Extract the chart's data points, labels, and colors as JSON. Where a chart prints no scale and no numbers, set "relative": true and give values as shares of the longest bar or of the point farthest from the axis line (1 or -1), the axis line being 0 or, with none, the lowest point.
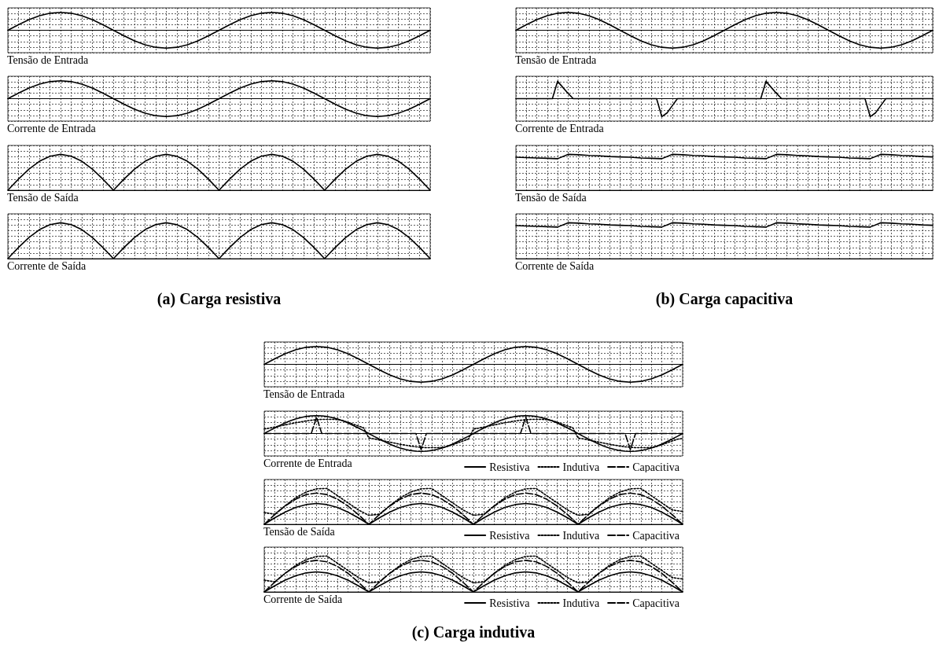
{
  "chart_data": [
    {
      "type": "line",
      "relative": true,
      "grid": true,
      "tick_labels": false,
      "xlabel": "Tensão de Entrada",
      "categories": [
        null,
        null,
        null,
        null,
        null,
        null,
        null,
        null,
        null,
        null,
        null,
        null,
        null,
        null,
        null,
        null,
        null,
        null,
        null,
        null,
        null,
        null,
        null,
        null,
        null,
        null,
        null,
        null,
        null,
        null,
        null,
        null,
        null,
        null,
        null,
        null,
        null,
        null,
        null,
        null,
        null
      ],
      "series": [
        {
          "color": "#000000",
          "values": [
            0,
            0.31,
            0.59,
            0.81,
            0.95,
            1,
            0.95,
            0.81,
            0.59,
            0.31,
            0,
            -0.31,
            -0.59,
            -0.81,
            -0.95,
            -1,
            -0.95,
            -0.81,
            -0.59,
            -0.31,
            0,
            0.31,
            0.59,
            0.81,
            0.95,
            1,
            0.95,
            0.81,
            0.59,
            0.31,
            0,
            -0.31,
            -0.59,
            -0.81,
            -0.95,
            -1,
            -0.95,
            -0.81,
            -0.59,
            -0.31,
            0
          ]
        }
      ]
    },
    {
      "type": "line",
      "relative": true,
      "grid": true,
      "tick_labels": false,
      "xlabel": "Corrente de Entrada",
      "categories": [
        null,
        null,
        null,
        null,
        null,
        null,
        null,
        null,
        null,
        null,
        null,
        null,
        null,
        null,
        null,
        null,
        null,
        null,
        null,
        null,
        null,
        null,
        null,
        null,
        null,
        null,
        null,
        null,
        null,
        null,
        null,
        null,
        null,
        null,
        null,
        null,
        null,
        null,
        null,
        null,
        null
      ],
      "series": [
        {
          "color": "#000000",
          "values": [
            0,
            0.31,
            0.59,
            0.81,
            0.95,
            1,
            0.95,
            0.81,
            0.59,
            0.31,
            0,
            -0.31,
            -0.59,
            -0.81,
            -0.95,
            -1,
            -0.95,
            -0.81,
            -0.59,
            -0.31,
            0,
            0.31,
            0.59,
            0.81,
            0.95,
            1,
            0.95,
            0.81,
            0.59,
            0.31,
            0,
            -0.31,
            -0.59,
            -0.81,
            -0.95,
            -1,
            -0.95,
            -0.81,
            -0.59,
            -0.31,
            0
          ]
        }
      ]
    },
    {
      "type": "line",
      "relative": true,
      "grid": true,
      "tick_labels": false,
      "xlabel": "Tensão de Saída",
      "categories": [
        null,
        null,
        null,
        null,
        null,
        null,
        null,
        null,
        null,
        null,
        null,
        null,
        null,
        null,
        null,
        null,
        null,
        null,
        null,
        null,
        null,
        null,
        null,
        null,
        null,
        null,
        null,
        null,
        null,
        null,
        null,
        null,
        null,
        null,
        null,
        null,
        null,
        null,
        null,
        null,
        null
      ],
      "series": [
        {
          "color": "#000000",
          "values": [
            0,
            0.31,
            0.59,
            0.81,
            0.95,
            1,
            0.95,
            0.81,
            0.59,
            0.31,
            0,
            0.31,
            0.59,
            0.81,
            0.95,
            1,
            0.95,
            0.81,
            0.59,
            0.31,
            0,
            0.31,
            0.59,
            0.81,
            0.95,
            1,
            0.95,
            0.81,
            0.59,
            0.31,
            0,
            0.31,
            0.59,
            0.81,
            0.95,
            1,
            0.95,
            0.81,
            0.59,
            0.31,
            0
          ]
        }
      ]
    },
    {
      "type": "line",
      "relative": true,
      "grid": true,
      "tick_labels": false,
      "xlabel": "Corrente de Saída",
      "annotations": [
        "(a) Carga resistiva"
      ],
      "categories": [
        null,
        null,
        null,
        null,
        null,
        null,
        null,
        null,
        null,
        null,
        null,
        null,
        null,
        null,
        null,
        null,
        null,
        null,
        null,
        null,
        null,
        null,
        null,
        null,
        null,
        null,
        null,
        null,
        null,
        null,
        null,
        null,
        null,
        null,
        null,
        null,
        null,
        null,
        null,
        null,
        null
      ],
      "series": [
        {
          "color": "#000000",
          "values": [
            0,
            0.31,
            0.59,
            0.81,
            0.95,
            1,
            0.95,
            0.81,
            0.59,
            0.31,
            0,
            0.31,
            0.59,
            0.81,
            0.95,
            1,
            0.95,
            0.81,
            0.59,
            0.31,
            0,
            0.31,
            0.59,
            0.81,
            0.95,
            1,
            0.95,
            0.81,
            0.59,
            0.31,
            0,
            0.31,
            0.59,
            0.81,
            0.95,
            1,
            0.95,
            0.81,
            0.59,
            0.31,
            0
          ]
        }
      ]
    },
    {
      "type": "line",
      "relative": true,
      "grid": true,
      "tick_labels": false,
      "xlabel": "Tensão de Entrada",
      "categories": [
        null,
        null,
        null,
        null,
        null,
        null,
        null,
        null,
        null,
        null,
        null,
        null,
        null,
        null,
        null,
        null,
        null,
        null,
        null,
        null,
        null,
        null,
        null,
        null,
        null,
        null,
        null,
        null,
        null,
        null,
        null,
        null,
        null,
        null,
        null,
        null,
        null,
        null,
        null,
        null,
        null
      ],
      "series": [
        {
          "color": "#000000",
          "values": [
            0,
            0.31,
            0.59,
            0.81,
            0.95,
            1,
            0.95,
            0.81,
            0.59,
            0.31,
            0,
            -0.31,
            -0.59,
            -0.81,
            -0.95,
            -1,
            -0.95,
            -0.81,
            -0.59,
            -0.31,
            0,
            0.31,
            0.59,
            0.81,
            0.95,
            1,
            0.95,
            0.81,
            0.59,
            0.31,
            0,
            -0.31,
            -0.59,
            -0.81,
            -0.95,
            -1,
            -0.95,
            -0.81,
            -0.59,
            -0.31,
            0
          ]
        }
      ]
    },
    {
      "type": "line",
      "relative": true,
      "grid": true,
      "tick_labels": false,
      "xlabel": "Corrente de Entrada",
      "categories": [
        null,
        null,
        null,
        null,
        null,
        null,
        null,
        null,
        null,
        null,
        null,
        null,
        null,
        null,
        null,
        null,
        null,
        null,
        null,
        null,
        null,
        null,
        null,
        null,
        null,
        null,
        null,
        null,
        null,
        null,
        null,
        null,
        null,
        null,
        null,
        null,
        null,
        null,
        null,
        null,
        null,
        null,
        null,
        null,
        null,
        null,
        null,
        null,
        null,
        null,
        null,
        null,
        null,
        null,
        null,
        null,
        null,
        null,
        null,
        null,
        null,
        null,
        null,
        null,
        null,
        null,
        null,
        null,
        null,
        null,
        null,
        null,
        null,
        null,
        null,
        null,
        null,
        null,
        null,
        null,
        null
      ],
      "series": [
        {
          "color": "#000000",
          "values": [
            0,
            0,
            0,
            0,
            0,
            0,
            0,
            0,
            0.97,
            0.63,
            0.3,
            0,
            0,
            0,
            0,
            0,
            0,
            0,
            0,
            0,
            0,
            0,
            0,
            0,
            0,
            0,
            0,
            0,
            -1,
            -0.8,
            -0.4,
            0,
            0,
            0,
            0,
            0,
            0,
            0,
            0,
            0,
            0,
            0,
            0,
            0,
            0,
            0,
            0,
            0,
            0.97,
            0.63,
            0.3,
            0,
            0,
            0,
            0,
            0,
            0,
            0,
            0,
            0,
            0,
            0,
            0,
            0,
            0,
            0,
            0,
            0,
            -1,
            -0.8,
            -0.4,
            0,
            0,
            0,
            0,
            0,
            0,
            0,
            0,
            0,
            0
          ]
        }
      ]
    },
    {
      "type": "line",
      "relative": true,
      "grid": true,
      "tick_labels": false,
      "xlabel": "Tensão de Saída",
      "categories": [
        null,
        null,
        null,
        null,
        null,
        null,
        null,
        null,
        null,
        null,
        null,
        null,
        null,
        null,
        null,
        null,
        null,
        null,
        null,
        null,
        null,
        null,
        null,
        null,
        null,
        null,
        null,
        null,
        null,
        null,
        null,
        null,
        null,
        null,
        null,
        null,
        null,
        null,
        null,
        null,
        null
      ],
      "series": [
        {
          "color": "#000000",
          "values": [
            0.92,
            0.91,
            0.9,
            0.89,
            0.88,
            1,
            0.99,
            0.97,
            0.96,
            0.94,
            0.93,
            0.92,
            0.9,
            0.89,
            0.88,
            1,
            0.99,
            0.97,
            0.96,
            0.94,
            0.93,
            0.92,
            0.9,
            0.89,
            0.88,
            1,
            0.99,
            0.97,
            0.96,
            0.94,
            0.93,
            0.92,
            0.9,
            0.89,
            0.88,
            1,
            0.99,
            0.97,
            0.96,
            0.94,
            0.93
          ]
        }
      ]
    },
    {
      "type": "line",
      "relative": true,
      "grid": true,
      "tick_labels": false,
      "xlabel": "Corrente de Saída",
      "annotations": [
        "(b) Carga capacitiva"
      ],
      "categories": [
        null,
        null,
        null,
        null,
        null,
        null,
        null,
        null,
        null,
        null,
        null,
        null,
        null,
        null,
        null,
        null,
        null,
        null,
        null,
        null,
        null,
        null,
        null,
        null,
        null,
        null,
        null,
        null,
        null,
        null,
        null,
        null,
        null,
        null,
        null,
        null,
        null,
        null,
        null,
        null,
        null
      ],
      "series": [
        {
          "color": "#000000",
          "values": [
            0.92,
            0.91,
            0.9,
            0.89,
            0.88,
            1,
            0.99,
            0.97,
            0.96,
            0.94,
            0.93,
            0.92,
            0.9,
            0.89,
            0.88,
            1,
            0.99,
            0.97,
            0.96,
            0.94,
            0.93,
            0.92,
            0.9,
            0.89,
            0.88,
            1,
            0.99,
            0.97,
            0.96,
            0.94,
            0.93,
            0.92,
            0.9,
            0.89,
            0.88,
            1,
            0.99,
            0.97,
            0.96,
            0.94,
            0.93
          ]
        }
      ]
    },
    {
      "type": "line",
      "relative": true,
      "grid": true,
      "tick_labels": false,
      "xlabel": "Tensão de Entrada",
      "categories": [
        null,
        null,
        null,
        null,
        null,
        null,
        null,
        null,
        null,
        null,
        null,
        null,
        null,
        null,
        null,
        null,
        null,
        null,
        null,
        null,
        null,
        null,
        null,
        null,
        null,
        null,
        null,
        null,
        null,
        null,
        null,
        null,
        null,
        null,
        null,
        null,
        null,
        null,
        null,
        null,
        null
      ],
      "series": [
        {
          "color": "#000000",
          "values": [
            0,
            0.31,
            0.59,
            0.81,
            0.95,
            1,
            0.95,
            0.81,
            0.59,
            0.31,
            0,
            -0.31,
            -0.59,
            -0.81,
            -0.95,
            -1,
            -0.95,
            -0.81,
            -0.59,
            -0.31,
            0,
            0.31,
            0.59,
            0.81,
            0.95,
            1,
            0.95,
            0.81,
            0.59,
            0.31,
            0,
            -0.31,
            -0.59,
            -0.81,
            -0.95,
            -1,
            -0.95,
            -0.81,
            -0.59,
            -0.31,
            0
          ]
        }
      ]
    },
    {
      "type": "line",
      "relative": true,
      "grid": true,
      "tick_labels": false,
      "legend": "bottom right",
      "xlabel": "Corrente de Entrada",
      "categories": [
        null,
        null,
        null,
        null,
        null,
        null,
        null,
        null,
        null,
        null,
        null,
        null,
        null,
        null,
        null,
        null,
        null,
        null,
        null,
        null,
        null,
        null,
        null,
        null,
        null,
        null,
        null,
        null,
        null,
        null,
        null,
        null,
        null,
        null,
        null,
        null,
        null,
        null,
        null,
        null,
        null,
        null,
        null,
        null,
        null,
        null,
        null,
        null,
        null,
        null,
        null,
        null,
        null,
        null,
        null,
        null,
        null,
        null,
        null,
        null,
        null,
        null,
        null,
        null,
        null,
        null,
        null,
        null,
        null,
        null,
        null,
        null,
        null,
        null,
        null,
        null,
        null,
        null,
        null,
        null,
        null
      ],
      "series": [
        {
          "name": "Resistiva",
          "color": "#000000",
          "line_style": "solid",
          "values": [
            0,
            0.16,
            0.31,
            0.45,
            0.59,
            0.71,
            0.81,
            0.89,
            0.95,
            0.99,
            1,
            0.99,
            0.95,
            0.89,
            0.81,
            0.71,
            0.59,
            0.45,
            0.31,
            0.16,
            0,
            -0.16,
            -0.31,
            -0.45,
            -0.59,
            -0.71,
            -0.81,
            -0.89,
            -0.95,
            -0.99,
            -1,
            -0.99,
            -0.95,
            -0.89,
            -0.81,
            -0.71,
            -0.59,
            -0.45,
            -0.31,
            -0.16,
            0,
            0.16,
            0.31,
            0.45,
            0.59,
            0.71,
            0.81,
            0.89,
            0.95,
            0.99,
            1,
            0.99,
            0.95,
            0.89,
            0.81,
            0.71,
            0.59,
            0.45,
            0.31,
            0.16,
            0,
            -0.16,
            -0.31,
            -0.45,
            -0.59,
            -0.71,
            -0.81,
            -0.89,
            -0.95,
            -0.99,
            -1,
            -0.99,
            -0.95,
            -0.89,
            -0.81,
            -0.71,
            -0.59,
            -0.45,
            -0.31,
            -0.16,
            0
          ]
        },
        {
          "name": "Indutiva",
          "color": "#000000",
          "line_style": "dotted",
          "values": [
            0.25,
            0.3,
            0.36,
            0.42,
            0.48,
            0.54,
            0.6,
            0.65,
            0.7,
            0.74,
            0.77,
            0.79,
            0.79,
            0.79,
            0.78,
            0.72,
            0.63,
            0.52,
            0.42,
            0.32,
            -0.25,
            -0.3,
            -0.36,
            -0.42,
            -0.48,
            -0.54,
            -0.6,
            -0.65,
            -0.7,
            -0.74,
            -0.77,
            -0.79,
            -0.79,
            -0.79,
            -0.78,
            -0.72,
            -0.63,
            -0.52,
            -0.42,
            -0.32,
            0.25,
            0.3,
            0.36,
            0.42,
            0.48,
            0.54,
            0.6,
            0.65,
            0.7,
            0.74,
            0.77,
            0.79,
            0.79,
            0.79,
            0.78,
            0.72,
            0.63,
            0.52,
            0.42,
            0.32,
            -0.25,
            -0.3,
            -0.36,
            -0.42,
            -0.48,
            -0.54,
            -0.6,
            -0.65,
            -0.7,
            -0.74,
            -0.77,
            -0.79,
            -0.79,
            -0.79,
            -0.78,
            -0.72,
            -0.63,
            -0.52,
            -0.42,
            -0.32,
            -0.28
          ]
        },
        {
          "name": "Capacitiva",
          "color": "#000000",
          "line_style": "dashed",
          "values": [
            0,
            0,
            0,
            0,
            0,
            0,
            0,
            0,
            0,
            0,
            0.92,
            0,
            0,
            0,
            0,
            0,
            0,
            0,
            0,
            0,
            0,
            0,
            0,
            0,
            0,
            0,
            0,
            0,
            0,
            0,
            -0.9,
            0,
            0,
            0,
            0,
            0,
            0,
            0,
            0,
            0,
            0,
            0,
            0,
            0,
            0,
            0,
            0,
            0,
            0,
            0,
            0.92,
            0,
            0,
            0,
            0,
            0,
            0,
            0,
            0,
            0,
            0,
            0,
            0,
            0,
            0,
            0,
            0,
            0,
            0,
            0,
            -0.9,
            0,
            0,
            0,
            0,
            0,
            0,
            0,
            0,
            0,
            0
          ]
        }
      ]
    },
    {
      "type": "line",
      "relative": true,
      "grid": true,
      "tick_labels": false,
      "legend": "bottom right",
      "xlabel": "Tensão de Saída",
      "categories": [
        null,
        null,
        null,
        null,
        null,
        null,
        null,
        null,
        null,
        null,
        null,
        null,
        null,
        null,
        null,
        null,
        null,
        null,
        null,
        null,
        null,
        null,
        null,
        null,
        null,
        null,
        null,
        null,
        null,
        null,
        null,
        null,
        null,
        null,
        null,
        null,
        null,
        null,
        null,
        null,
        null
      ],
      "series": [
        {
          "name": "Resistiva",
          "color": "#000000",
          "line_style": "solid",
          "values": [
            0,
            0.18,
            0.34,
            0.47,
            0.55,
            0.58,
            0.55,
            0.47,
            0.34,
            0.18,
            0,
            0.18,
            0.34,
            0.47,
            0.55,
            0.58,
            0.55,
            0.47,
            0.34,
            0.18,
            0,
            0.18,
            0.34,
            0.47,
            0.55,
            0.58,
            0.55,
            0.47,
            0.34,
            0.18,
            0,
            0.18,
            0.34,
            0.47,
            0.55,
            0.58,
            0.55,
            0.47,
            0.34,
            0.18,
            0
          ]
        },
        {
          "name": "Indutiva",
          "color": "#000000",
          "line_style": "dotted",
          "values": [
            0.33,
            0.28,
            0.52,
            0.74,
            0.9,
            0.99,
            1,
            0.8,
            0.6,
            0.4,
            0.25,
            0.28,
            0.52,
            0.74,
            0.9,
            0.99,
            1,
            0.8,
            0.6,
            0.4,
            0.25,
            0.28,
            0.52,
            0.74,
            0.9,
            0.99,
            1,
            0.8,
            0.6,
            0.4,
            0.25,
            0.28,
            0.52,
            0.74,
            0.9,
            0.99,
            1,
            0.8,
            0.6,
            0.4,
            0.36
          ]
        },
        {
          "name": "Capacitiva",
          "color": "#000000",
          "line_style": "dashed",
          "values": [
            0,
            0.27,
            0.51,
            0.7,
            0.83,
            0.87,
            0.83,
            0.7,
            0.51,
            0.27,
            0,
            0.27,
            0.51,
            0.7,
            0.83,
            0.87,
            0.83,
            0.7,
            0.51,
            0.27,
            0,
            0.27,
            0.51,
            0.7,
            0.83,
            0.87,
            0.83,
            0.7,
            0.51,
            0.27,
            0,
            0.27,
            0.51,
            0.7,
            0.83,
            0.87,
            0.83,
            0.7,
            0.51,
            0.27,
            0
          ]
        }
      ]
    },
    {
      "type": "line",
      "relative": true,
      "grid": true,
      "tick_labels": false,
      "legend": "bottom right",
      "xlabel": "Corrente de Saída",
      "annotations": [
        "(c) Carga indutiva"
      ],
      "categories": [
        null,
        null,
        null,
        null,
        null,
        null,
        null,
        null,
        null,
        null,
        null,
        null,
        null,
        null,
        null,
        null,
        null,
        null,
        null,
        null,
        null,
        null,
        null,
        null,
        null,
        null,
        null,
        null,
        null,
        null,
        null,
        null,
        null,
        null,
        null,
        null,
        null,
        null,
        null,
        null,
        null
      ],
      "series": [
        {
          "name": "Resistiva",
          "color": "#000000",
          "line_style": "solid",
          "values": [
            0,
            0.17,
            0.33,
            0.45,
            0.53,
            0.56,
            0.53,
            0.45,
            0.33,
            0.17,
            0,
            0.17,
            0.33,
            0.45,
            0.53,
            0.56,
            0.53,
            0.45,
            0.33,
            0.17,
            0,
            0.17,
            0.33,
            0.45,
            0.53,
            0.56,
            0.53,
            0.45,
            0.33,
            0.17,
            0,
            0.17,
            0.33,
            0.45,
            0.53,
            0.56,
            0.53,
            0.45,
            0.33,
            0.17,
            0
          ]
        },
        {
          "name": "Indutiva",
          "color": "#000000",
          "line_style": "dotted",
          "values": [
            0.33,
            0.28,
            0.52,
            0.74,
            0.9,
            0.99,
            1,
            0.8,
            0.6,
            0.4,
            0.25,
            0.28,
            0.52,
            0.74,
            0.9,
            0.99,
            1,
            0.8,
            0.6,
            0.4,
            0.25,
            0.28,
            0.52,
            0.74,
            0.9,
            0.99,
            1,
            0.8,
            0.6,
            0.4,
            0.25,
            0.28,
            0.52,
            0.74,
            0.9,
            0.99,
            1,
            0.8,
            0.6,
            0.4,
            0.36
          ]
        },
        {
          "name": "Capacitiva",
          "color": "#000000",
          "line_style": "dashed",
          "values": [
            0,
            0.27,
            0.52,
            0.71,
            0.84,
            0.88,
            0.84,
            0.71,
            0.52,
            0.27,
            0,
            0.27,
            0.52,
            0.71,
            0.84,
            0.88,
            0.84,
            0.71,
            0.52,
            0.27,
            0,
            0.27,
            0.52,
            0.71,
            0.84,
            0.88,
            0.84,
            0.71,
            0.52,
            0.27,
            0,
            0.27,
            0.52,
            0.71,
            0.84,
            0.88,
            0.84,
            0.71,
            0.52,
            0.27,
            0
          ]
        }
      ]
    }
  ]
}
